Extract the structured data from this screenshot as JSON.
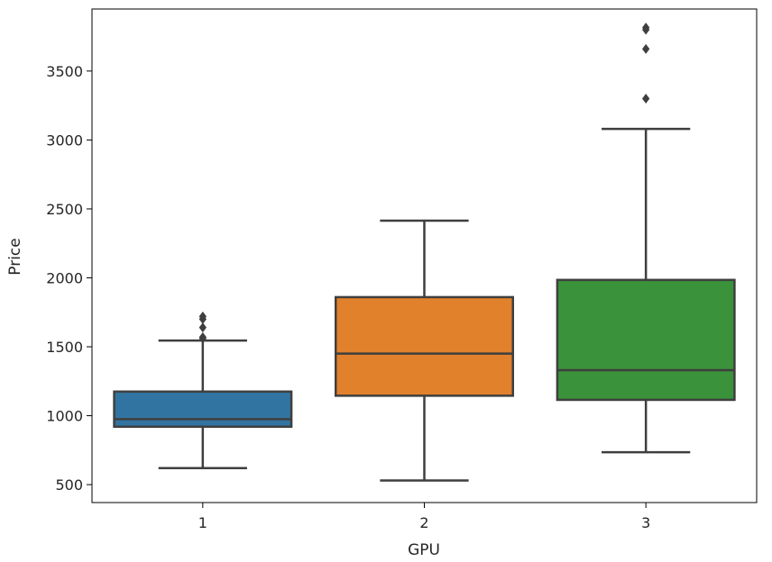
{
  "chart_data": {
    "type": "box",
    "xlabel": "GPU",
    "ylabel": "Price",
    "categories": [
      "1",
      "2",
      "3"
    ],
    "ylim": [
      370,
      3950
    ],
    "yticks": [
      500,
      1000,
      1500,
      2000,
      2500,
      3000,
      3500
    ],
    "grid": false,
    "boxes": [
      {
        "category": "1",
        "color": "#3274a1",
        "whisker_low": 620,
        "q1": 920,
        "median": 975,
        "q3": 1175,
        "whisker_high": 1545,
        "outliers": [
          1560,
          1570,
          1640,
          1700,
          1720
        ]
      },
      {
        "category": "2",
        "color": "#e1812c",
        "whisker_low": 530,
        "q1": 1145,
        "median": 1450,
        "q3": 1860,
        "whisker_high": 2415,
        "outliers": []
      },
      {
        "category": "3",
        "color": "#3a923a",
        "whisker_low": 735,
        "q1": 1115,
        "median": 1330,
        "q3": 1985,
        "whisker_high": 3080,
        "outliers": [
          3300,
          3660,
          3800,
          3815
        ]
      }
    ]
  }
}
